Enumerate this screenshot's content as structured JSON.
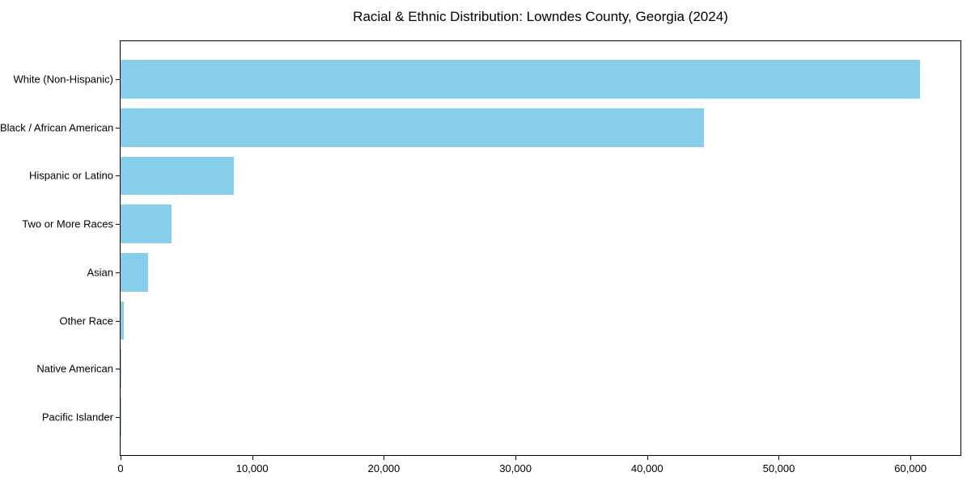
{
  "figure": {
    "background": "#ffffff",
    "axis_color": "#000000",
    "text_color": "#000000"
  },
  "chart_data": {
    "type": "bar",
    "orientation": "horizontal",
    "title": "Racial & Ethnic Distribution: Lowndes County, Georgia (2024)",
    "categories": [
      "White (Non-Hispanic)",
      "Black / African American",
      "Hispanic or Latino",
      "Two or More Races",
      "Asian",
      "Other Race",
      "Native American",
      "Pacific Islander"
    ],
    "values": [
      60700,
      44300,
      8600,
      3900,
      2060,
      220,
      90,
      40
    ],
    "bar_color": "#87ceeb",
    "xlabel": "",
    "ylabel": "",
    "xlim": [
      0,
      63800
    ],
    "x_ticks": [
      0,
      10000,
      20000,
      30000,
      40000,
      50000,
      60000
    ],
    "x_tick_labels": [
      "0",
      "10,000",
      "20,000",
      "30,000",
      "40,000",
      "50,000",
      "60,000"
    ],
    "grid": false,
    "legend": "none",
    "bar_relative_height": 0.8
  }
}
